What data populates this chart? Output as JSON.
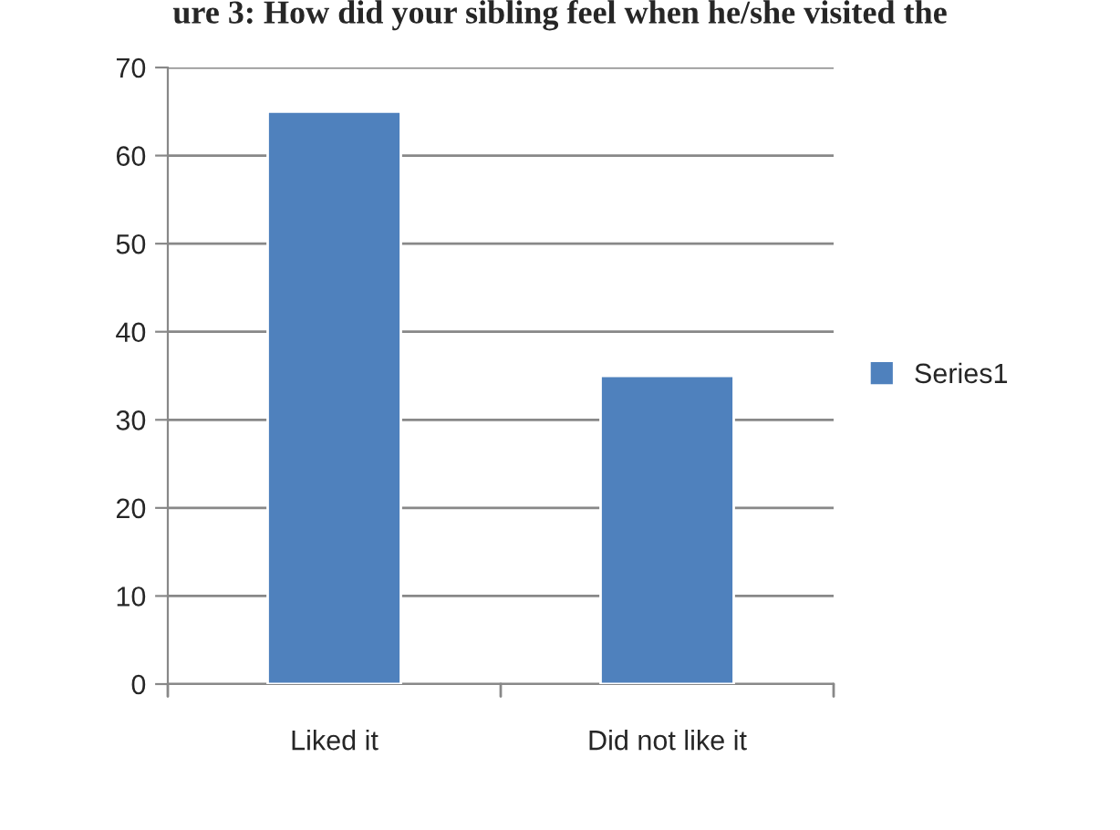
{
  "chart_data": {
    "type": "bar",
    "title": "ure 3: How did your sibling feel when he/she visited the",
    "categories": [
      "Liked it",
      "Did not like it"
    ],
    "series": [
      {
        "name": "Series1",
        "color": "#4f81bd",
        "values": [
          65,
          35
        ]
      }
    ],
    "ylim": [
      0,
      70
    ],
    "yticks": [
      0,
      10,
      20,
      30,
      40,
      50,
      60,
      70
    ],
    "grid": "y",
    "legend": "right"
  }
}
